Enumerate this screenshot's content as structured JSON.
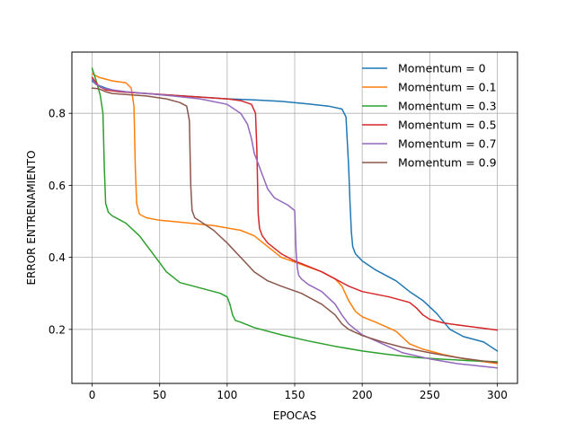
{
  "chart_data": {
    "type": "line",
    "title": "",
    "xlabel": "EPOCAS",
    "ylabel": "ERROR ENTRENAMIENTO",
    "xlim": [
      -15,
      315
    ],
    "ylim": [
      0.05,
      0.97
    ],
    "xticks": [
      0,
      50,
      100,
      150,
      200,
      250,
      300
    ],
    "yticks": [
      0.2,
      0.4,
      0.6,
      0.8
    ],
    "xtick_labels": [
      "0",
      "50",
      "100",
      "150",
      "200",
      "250",
      "300"
    ],
    "ytick_labels": [
      "0.2",
      "0.4",
      "0.6",
      "0.8"
    ],
    "grid": true,
    "legend_position": "top-right",
    "series": [
      {
        "name": "Momentum = 0",
        "color": "#1f77b4",
        "x": [
          0,
          3,
          10,
          20,
          40,
          60,
          80,
          100,
          120,
          140,
          160,
          175,
          185,
          188,
          190,
          191,
          192,
          193,
          195,
          200,
          210,
          225,
          235,
          245,
          255,
          265,
          275,
          290,
          300
        ],
        "y": [
          0.89,
          0.88,
          0.87,
          0.86,
          0.855,
          0.85,
          0.845,
          0.84,
          0.837,
          0.833,
          0.826,
          0.82,
          0.812,
          0.79,
          0.65,
          0.55,
          0.47,
          0.43,
          0.41,
          0.39,
          0.365,
          0.335,
          0.305,
          0.28,
          0.245,
          0.2,
          0.18,
          0.165,
          0.14
        ]
      },
      {
        "name": "Momentum = 0.1",
        "color": "#ff7f0e",
        "x": [
          0,
          5,
          15,
          25,
          29,
          31,
          32,
          33,
          35,
          40,
          50,
          70,
          90,
          110,
          120,
          130,
          140,
          155,
          170,
          180,
          185,
          190,
          195,
          200,
          210,
          225,
          235,
          245,
          260,
          280,
          300
        ],
        "y": [
          0.91,
          0.9,
          0.89,
          0.885,
          0.87,
          0.82,
          0.65,
          0.55,
          0.52,
          0.51,
          0.503,
          0.496,
          0.488,
          0.475,
          0.46,
          0.43,
          0.4,
          0.38,
          0.36,
          0.34,
          0.32,
          0.28,
          0.25,
          0.235,
          0.22,
          0.195,
          0.16,
          0.145,
          0.13,
          0.115,
          0.105
        ]
      },
      {
        "name": "Momentum = 0.3",
        "color": "#2ca02c",
        "x": [
          0,
          3,
          6,
          8,
          9,
          10,
          12,
          15,
          25,
          35,
          45,
          55,
          65,
          80,
          95,
          100,
          102,
          104,
          106,
          110,
          120,
          140,
          160,
          180,
          200,
          220,
          240,
          260,
          280,
          300
        ],
        "y": [
          0.925,
          0.89,
          0.85,
          0.8,
          0.65,
          0.55,
          0.525,
          0.515,
          0.495,
          0.46,
          0.41,
          0.36,
          0.33,
          0.315,
          0.3,
          0.29,
          0.27,
          0.24,
          0.225,
          0.22,
          0.205,
          0.185,
          0.168,
          0.153,
          0.14,
          0.13,
          0.122,
          0.117,
          0.113,
          0.11
        ]
      },
      {
        "name": "Momentum = 0.5",
        "color": "#d62728",
        "x": [
          0,
          5,
          10,
          20,
          40,
          60,
          80,
          100,
          110,
          118,
          121,
          122,
          123,
          124,
          126,
          130,
          140,
          150,
          160,
          170,
          180,
          190,
          200,
          220,
          235,
          240,
          245,
          250,
          260,
          275,
          290,
          300
        ],
        "y": [
          0.9,
          0.875,
          0.865,
          0.86,
          0.855,
          0.85,
          0.845,
          0.84,
          0.835,
          0.825,
          0.8,
          0.7,
          0.52,
          0.48,
          0.46,
          0.44,
          0.41,
          0.39,
          0.375,
          0.36,
          0.34,
          0.32,
          0.305,
          0.29,
          0.275,
          0.26,
          0.24,
          0.228,
          0.218,
          0.21,
          0.203,
          0.198
        ]
      },
      {
        "name": "Momentum = 0.7",
        "color": "#9467bd",
        "x": [
          0,
          3,
          8,
          15,
          25,
          40,
          60,
          80,
          100,
          110,
          115,
          118,
          120,
          122,
          125,
          130,
          135,
          145,
          150,
          151,
          152,
          153,
          155,
          160,
          170,
          180,
          185,
          190,
          200,
          215,
          230,
          250,
          270,
          290,
          300
        ],
        "y": [
          0.895,
          0.88,
          0.87,
          0.865,
          0.86,
          0.855,
          0.848,
          0.84,
          0.825,
          0.8,
          0.77,
          0.73,
          0.69,
          0.67,
          0.64,
          0.59,
          0.565,
          0.545,
          0.53,
          0.42,
          0.37,
          0.35,
          0.34,
          0.325,
          0.305,
          0.27,
          0.24,
          0.215,
          0.185,
          0.16,
          0.135,
          0.118,
          0.105,
          0.097,
          0.093
        ]
      },
      {
        "name": "Momentum = 0.9",
        "color": "#8c564b",
        "x": [
          0,
          5,
          10,
          15,
          25,
          40,
          55,
          65,
          70,
          72,
          73,
          74,
          76,
          80,
          90,
          100,
          110,
          115,
          120,
          130,
          140,
          155,
          170,
          180,
          185,
          190,
          200,
          215,
          230,
          250,
          270,
          290,
          300
        ],
        "y": [
          0.87,
          0.868,
          0.86,
          0.855,
          0.852,
          0.848,
          0.84,
          0.83,
          0.82,
          0.78,
          0.6,
          0.53,
          0.51,
          0.5,
          0.475,
          0.44,
          0.4,
          0.38,
          0.36,
          0.335,
          0.32,
          0.3,
          0.27,
          0.24,
          0.215,
          0.2,
          0.183,
          0.165,
          0.15,
          0.135,
          0.122,
          0.112,
          0.108
        ]
      }
    ]
  }
}
